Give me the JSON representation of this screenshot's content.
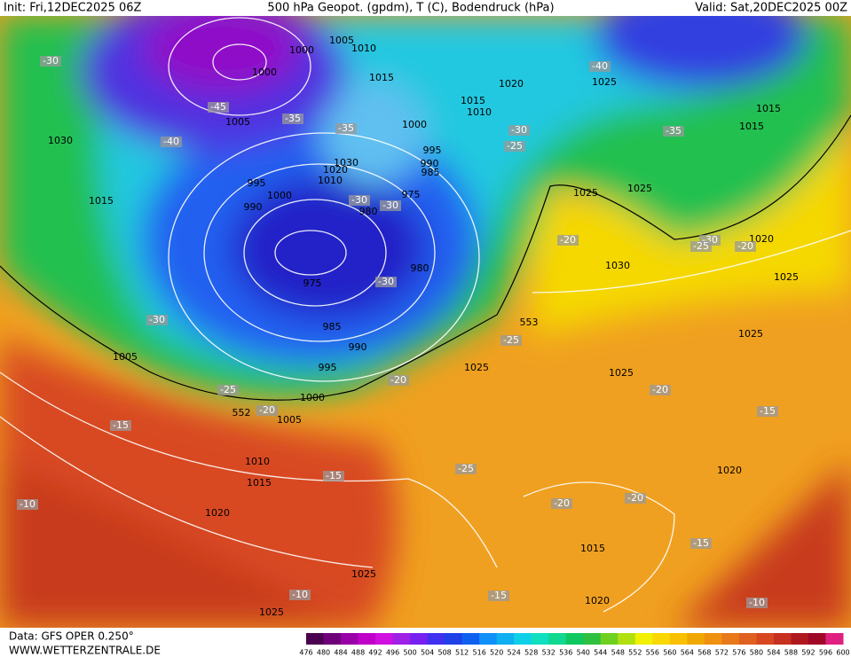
{
  "header": {
    "init": "Init: Fri,12DEC2025 06Z",
    "title": "500 hPa Geopot. (gpdm), T (C), Bodendruck (hPa)",
    "valid": "Valid: Sat,20DEC2025 00Z"
  },
  "footer": {
    "data": "Data: GFS OPER 0.250°",
    "site": "WWW.WETTERZENTRALE.DE"
  },
  "colorbar": {
    "ticks": [
      476,
      480,
      484,
      488,
      492,
      496,
      500,
      504,
      508,
      512,
      516,
      520,
      524,
      528,
      532,
      536,
      540,
      544,
      548,
      552,
      556,
      560,
      564,
      568,
      572,
      576,
      580,
      584,
      588,
      592,
      596,
      600
    ],
    "colors": [
      "#4b0050",
      "#70007a",
      "#9a00a8",
      "#c000c8",
      "#d010e0",
      "#a020e8",
      "#7820f0",
      "#4030f0",
      "#2040e8",
      "#1060f0",
      "#1090f8",
      "#10b0f0",
      "#10d0e8",
      "#10e0c0",
      "#10d890",
      "#10c860",
      "#30c040",
      "#70d020",
      "#b0e010",
      "#f0f000",
      "#f8d800",
      "#f8c000",
      "#f0a800",
      "#f09010",
      "#e87818",
      "#e06020",
      "#d84820",
      "#c83020",
      "#b01820",
      "#a00828",
      "#e02080"
    ]
  },
  "isobar_labels": [
    "1005",
    "1000",
    "1010",
    "1000",
    "1015",
    "1005",
    "1020",
    "1025",
    "1015",
    "1010",
    "1000",
    "995",
    "990",
    "985",
    "1030",
    "1020",
    "1010",
    "995",
    "1000",
    "975",
    "990",
    "980",
    "975",
    "980",
    "985",
    "990",
    "995",
    "1000",
    "1005",
    "1010",
    "1015",
    "1020",
    "1025",
    "1025",
    "1030",
    "1015",
    "1005",
    "1025",
    "1025",
    "1015",
    "1015",
    "1020",
    "1030",
    "1025",
    "1025",
    "1025",
    "1025",
    "1020",
    "1015",
    "1020"
  ],
  "height_labels": [
    "553",
    "552"
  ],
  "temperature_labels": [
    "-30",
    "-40",
    "-45",
    "-35",
    "-40",
    "-35",
    "-30",
    "-25",
    "-35",
    "-30",
    "-30",
    "-30",
    "-30",
    "-20",
    "-30",
    "-25",
    "-20",
    "-25",
    "-20",
    "-25",
    "-20",
    "-20",
    "-15",
    "-15",
    "-25",
    "-15",
    "-10",
    "-20",
    "-20",
    "-15",
    "-10",
    "-15",
    "-10"
  ]
}
